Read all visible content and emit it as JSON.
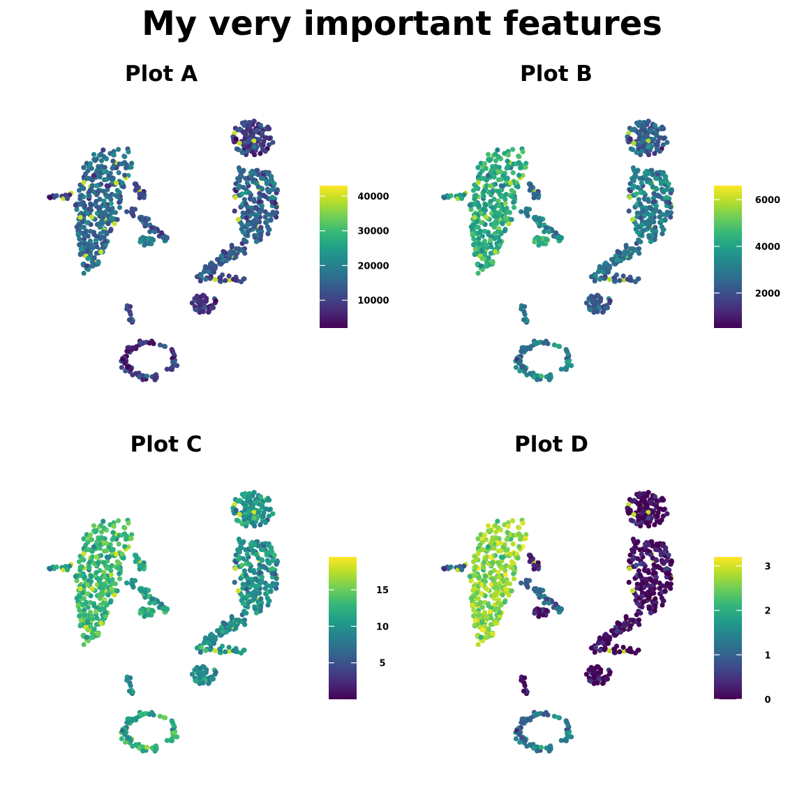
{
  "figure": {
    "title": "My very important features"
  },
  "colorscale": {
    "name": "viridis",
    "stops": [
      "#440154",
      "#482878",
      "#3e4989",
      "#31688e",
      "#26828e",
      "#1f9e89",
      "#35b779",
      "#6ece58",
      "#b5de2b",
      "#fde725"
    ]
  },
  "chart_data": [
    {
      "type": "scatter",
      "title": "Plot A",
      "axes_visible": false,
      "grid": false,
      "legend": "right",
      "colorbar": {
        "ticks": [
          "10000",
          "20000",
          "30000",
          "40000"
        ],
        "tick_values": [
          10000,
          20000,
          30000,
          40000
        ],
        "range": [
          2000,
          43000
        ]
      },
      "cluster_levels": [
        0.34,
        0.18,
        0.32,
        0.28,
        0.16,
        0.24,
        0.3,
        0.22,
        0.14,
        0.22,
        0.2,
        0.42
      ],
      "highlight_level": 0.92
    },
    {
      "type": "scatter",
      "title": "Plot B",
      "axes_visible": false,
      "grid": false,
      "legend": "right",
      "colorbar": {
        "ticks": [
          "2000",
          "4000",
          "6000"
        ],
        "tick_values": [
          2000,
          4000,
          6000
        ],
        "range": [
          500,
          6600
        ]
      },
      "cluster_levels": [
        0.6,
        0.3,
        0.42,
        0.38,
        0.3,
        0.32,
        0.48,
        0.34,
        0.42,
        0.4,
        0.55,
        0.62
      ],
      "highlight_level": 0.88
    },
    {
      "type": "scatter",
      "title": "Plot C",
      "axes_visible": false,
      "grid": false,
      "legend": "right",
      "colorbar": {
        "ticks": [
          "5",
          "10",
          "15"
        ],
        "tick_values": [
          5,
          10,
          15
        ],
        "range": [
          0,
          19.5
        ]
      },
      "cluster_levels": [
        0.66,
        0.52,
        0.5,
        0.48,
        0.5,
        0.56,
        0.58,
        0.6,
        0.6,
        0.48,
        0.56,
        0.6
      ],
      "highlight_level": 0.93
    },
    {
      "type": "scatter",
      "title": "Plot D",
      "axes_visible": false,
      "grid": false,
      "legend": "right",
      "colorbar": {
        "ticks": [
          "0",
          "1",
          "2",
          "3"
        ],
        "tick_values": [
          0,
          1,
          2,
          3
        ],
        "range": [
          0,
          3.2
        ]
      },
      "cluster_levels": [
        0.82,
        0.0,
        0.02,
        0.04,
        0.04,
        0.02,
        0.36,
        0.1,
        0.38,
        0.04,
        0.32,
        0.04
      ],
      "highlight_level": 0.9
    }
  ]
}
